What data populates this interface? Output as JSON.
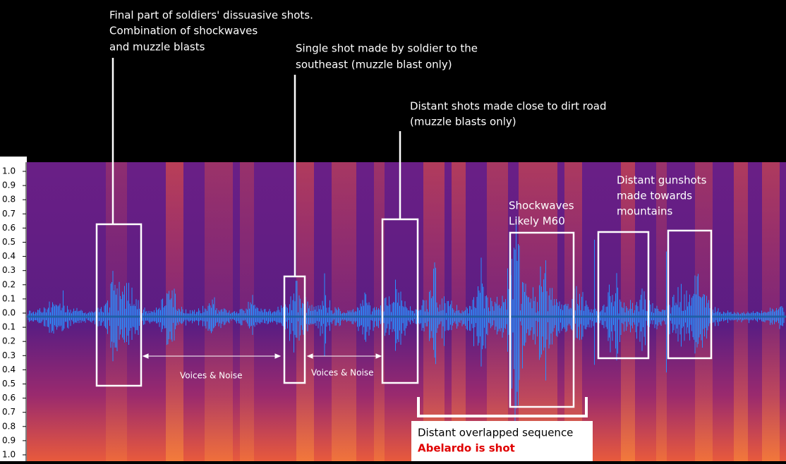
{
  "annotations": [
    {
      "lines": [
        "Final part of soldiers' dissuasive shots.",
        "Combination of shockwaves",
        "and muzzle blasts"
      ]
    },
    {
      "lines": [
        "Single shot made by soldier to the",
        "southeast (muzzle blast only)"
      ]
    },
    {
      "lines": [
        "Distant shots made close to dirt road",
        "(muzzle blasts only)"
      ]
    },
    {
      "lines": [
        "Shockwaves",
        "Likely M60"
      ]
    },
    {
      "lines": [
        "Distant gunshots",
        "made towards",
        "mountains"
      ]
    }
  ],
  "gaps": [
    "Voices & Noise",
    "Voices & Noise"
  ],
  "callout": {
    "line1": "Distant overlapped sequence",
    "line2": "Abelardo is shot"
  },
  "axis": {
    "labels": [
      "1.0",
      "0.9",
      "0.8",
      "0.7",
      "0.6",
      "0.5",
      "0.4",
      "0.3",
      "0.2",
      "0.1",
      "0.0",
      "0.1",
      "0.2",
      "0.3",
      "0.4",
      "0.5",
      "0.6",
      "0.7",
      "0.8",
      "0.9",
      "1.0"
    ]
  }
}
